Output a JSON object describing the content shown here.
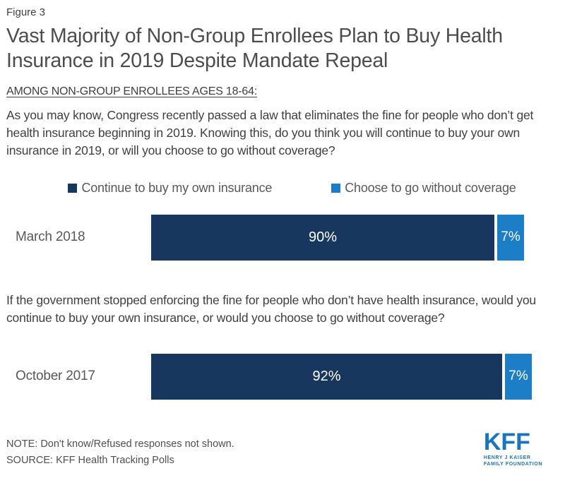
{
  "figure_label": "Figure 3",
  "title": "Vast Majority of Non-Group Enrollees Plan to Buy Health Insurance in 2019 Despite Mandate Repeal",
  "subtitle": "AMONG NON-GROUP ENROLLEES AGES 18-64:",
  "questions": {
    "q1": "As you may know, Congress recently passed a law that eliminates the fine for people who don’t get health insurance beginning in 2019. Knowing this, do you think you will continue to buy your own insurance in 2019, or will you choose to go without coverage?",
    "q2": "If the government stopped enforcing the fine for people who don’t have health insurance, would you continue to buy your own insurance, or would you choose to go without coverage?"
  },
  "legend": [
    {
      "label": "Continue to buy my own insurance",
      "color": "#17375E"
    },
    {
      "label": "Choose to go without coverage",
      "color": "#1B7EC6"
    }
  ],
  "chart_data": {
    "type": "bar",
    "orientation": "horizontal",
    "stacked": true,
    "categories": [
      "March 2018",
      "October 2017"
    ],
    "series": [
      {
        "name": "Continue to buy my own insurance",
        "color": "#17375E",
        "values": [
          90,
          92
        ]
      },
      {
        "name": "Choose to go without coverage",
        "color": "#1B7EC6",
        "values": [
          7,
          7
        ]
      }
    ],
    "value_labels": [
      [
        "90%",
        "7%"
      ],
      [
        "92%",
        "7%"
      ]
    ],
    "xlim": [
      0,
      100
    ],
    "grid": false,
    "legend_position": "top",
    "note": "Don't know/Refused responses not shown"
  },
  "footer": {
    "note": "NOTE: Don't know/Refused responses not shown.",
    "source": "SOURCE: KFF Health Tracking Polls"
  },
  "logo": {
    "text": "KFF",
    "line1": "HENRY J KAISER",
    "line2": "FAMILY FOUNDATION",
    "color": "#1B75BC"
  },
  "colors": {
    "dark_navy": "#17375E",
    "bright_blue": "#1B7EC6",
    "logo_blue": "#1B75BC"
  }
}
